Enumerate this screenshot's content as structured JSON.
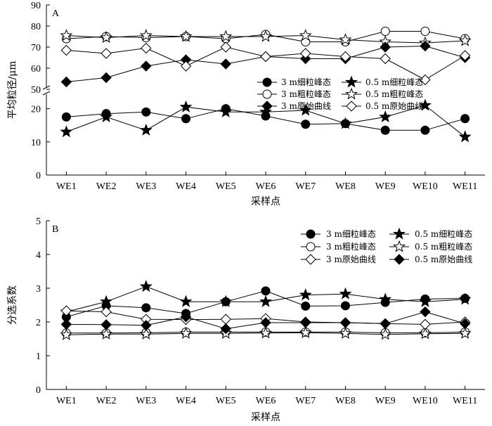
{
  "chart_data": [
    {
      "type": "line",
      "panel_label": "A",
      "ylabel": "平均粒径/μm",
      "xlabel": "采样点",
      "categories": [
        "WE1",
        "WE2",
        "WE3",
        "WE4",
        "WE5",
        "WE6",
        "WE7",
        "WE8",
        "WE9",
        "WE10",
        "WE11"
      ],
      "y_broken_axis": true,
      "y_lower_range": [
        0,
        25
      ],
      "y_upper_range": [
        50,
        90
      ],
      "y_lower_ticks": [
        "0",
        "10",
        "20"
      ],
      "y_upper_ticks": [
        "50",
        "60",
        "70",
        "80",
        "90"
      ],
      "legend_position": "center-right",
      "series": [
        {
          "name": "3 m细粒峰态",
          "marker": "circle-filled",
          "values": [
            17.5,
            18.5,
            19.0,
            17.0,
            20.0,
            17.8,
            15.3,
            15.5,
            13.5,
            13.5,
            17.0
          ]
        },
        {
          "name": "0.5 m细粒峰态",
          "marker": "star-filled",
          "values": [
            13.0,
            17.5,
            13.5,
            20.5,
            19.0,
            19.0,
            19.5,
            15.5,
            17.5,
            21.0,
            11.5
          ]
        },
        {
          "name": "3 m粗粒峰态",
          "marker": "circle-open",
          "values": [
            74.0,
            75.0,
            74.5,
            75.0,
            74.0,
            76.0,
            72.5,
            72.5,
            77.5,
            77.5,
            74.0
          ]
        },
        {
          "name": "0.5 m粗粒峰态",
          "marker": "star-open",
          "values": [
            75.5,
            74.5,
            75.5,
            75.0,
            75.0,
            75.0,
            75.5,
            73.5,
            72.5,
            72.0,
            73.0
          ]
        },
        {
          "name": "3 m原始曲线",
          "marker": "diamond-filled",
          "values": [
            53.5,
            55.5,
            61.0,
            64.0,
            62.0,
            65.5,
            64.5,
            64.5,
            70.0,
            70.5,
            65.0
          ]
        },
        {
          "name": "0.5 m原始曲线",
          "marker": "diamond-open",
          "values": [
            68.5,
            67.0,
            69.5,
            61.0,
            70.0,
            65.5,
            67.0,
            65.5,
            64.5,
            54.5,
            66.0
          ]
        }
      ]
    },
    {
      "type": "line",
      "panel_label": "B",
      "ylabel": "分选系数",
      "xlabel": "采样点",
      "categories": [
        "WE1",
        "WE2",
        "WE3",
        "WE4",
        "WE5",
        "WE6",
        "WE7",
        "WE8",
        "WE9",
        "WE10",
        "WE11"
      ],
      "ylim": [
        0,
        5
      ],
      "y_ticks": [
        "0",
        "1",
        "2",
        "3",
        "4",
        "5"
      ],
      "legend_position": "top-right",
      "series": [
        {
          "name": "3 m细粒峰态",
          "marker": "circle-filled",
          "values": [
            2.15,
            2.48,
            2.42,
            2.25,
            2.6,
            2.92,
            2.47,
            2.48,
            2.58,
            2.68,
            2.7
          ]
        },
        {
          "name": "0.5 m细粒峰态",
          "marker": "star-filled",
          "values": [
            2.3,
            2.6,
            3.05,
            2.6,
            2.6,
            2.6,
            2.8,
            2.83,
            2.67,
            2.6,
            2.67
          ]
        },
        {
          "name": "3 m粗粒峰态",
          "marker": "circle-open",
          "values": [
            1.67,
            1.67,
            1.68,
            1.7,
            1.7,
            1.7,
            1.7,
            1.7,
            1.68,
            1.68,
            1.7
          ]
        },
        {
          "name": "0.5 m粗粒峰态",
          "marker": "star-open",
          "values": [
            1.62,
            1.64,
            1.64,
            1.66,
            1.66,
            1.67,
            1.68,
            1.66,
            1.63,
            1.65,
            1.66
          ]
        },
        {
          "name": "3 m原始曲线",
          "marker": "diamond-open",
          "values": [
            2.33,
            2.3,
            2.08,
            2.07,
            2.08,
            2.1,
            2.0,
            1.98,
            1.95,
            1.93,
            2.0
          ]
        },
        {
          "name": "0.5 m原始曲线",
          "marker": "diamond-filled",
          "values": [
            1.93,
            1.92,
            1.9,
            2.15,
            1.8,
            1.98,
            1.98,
            1.98,
            1.95,
            2.3,
            1.95
          ]
        }
      ]
    }
  ]
}
